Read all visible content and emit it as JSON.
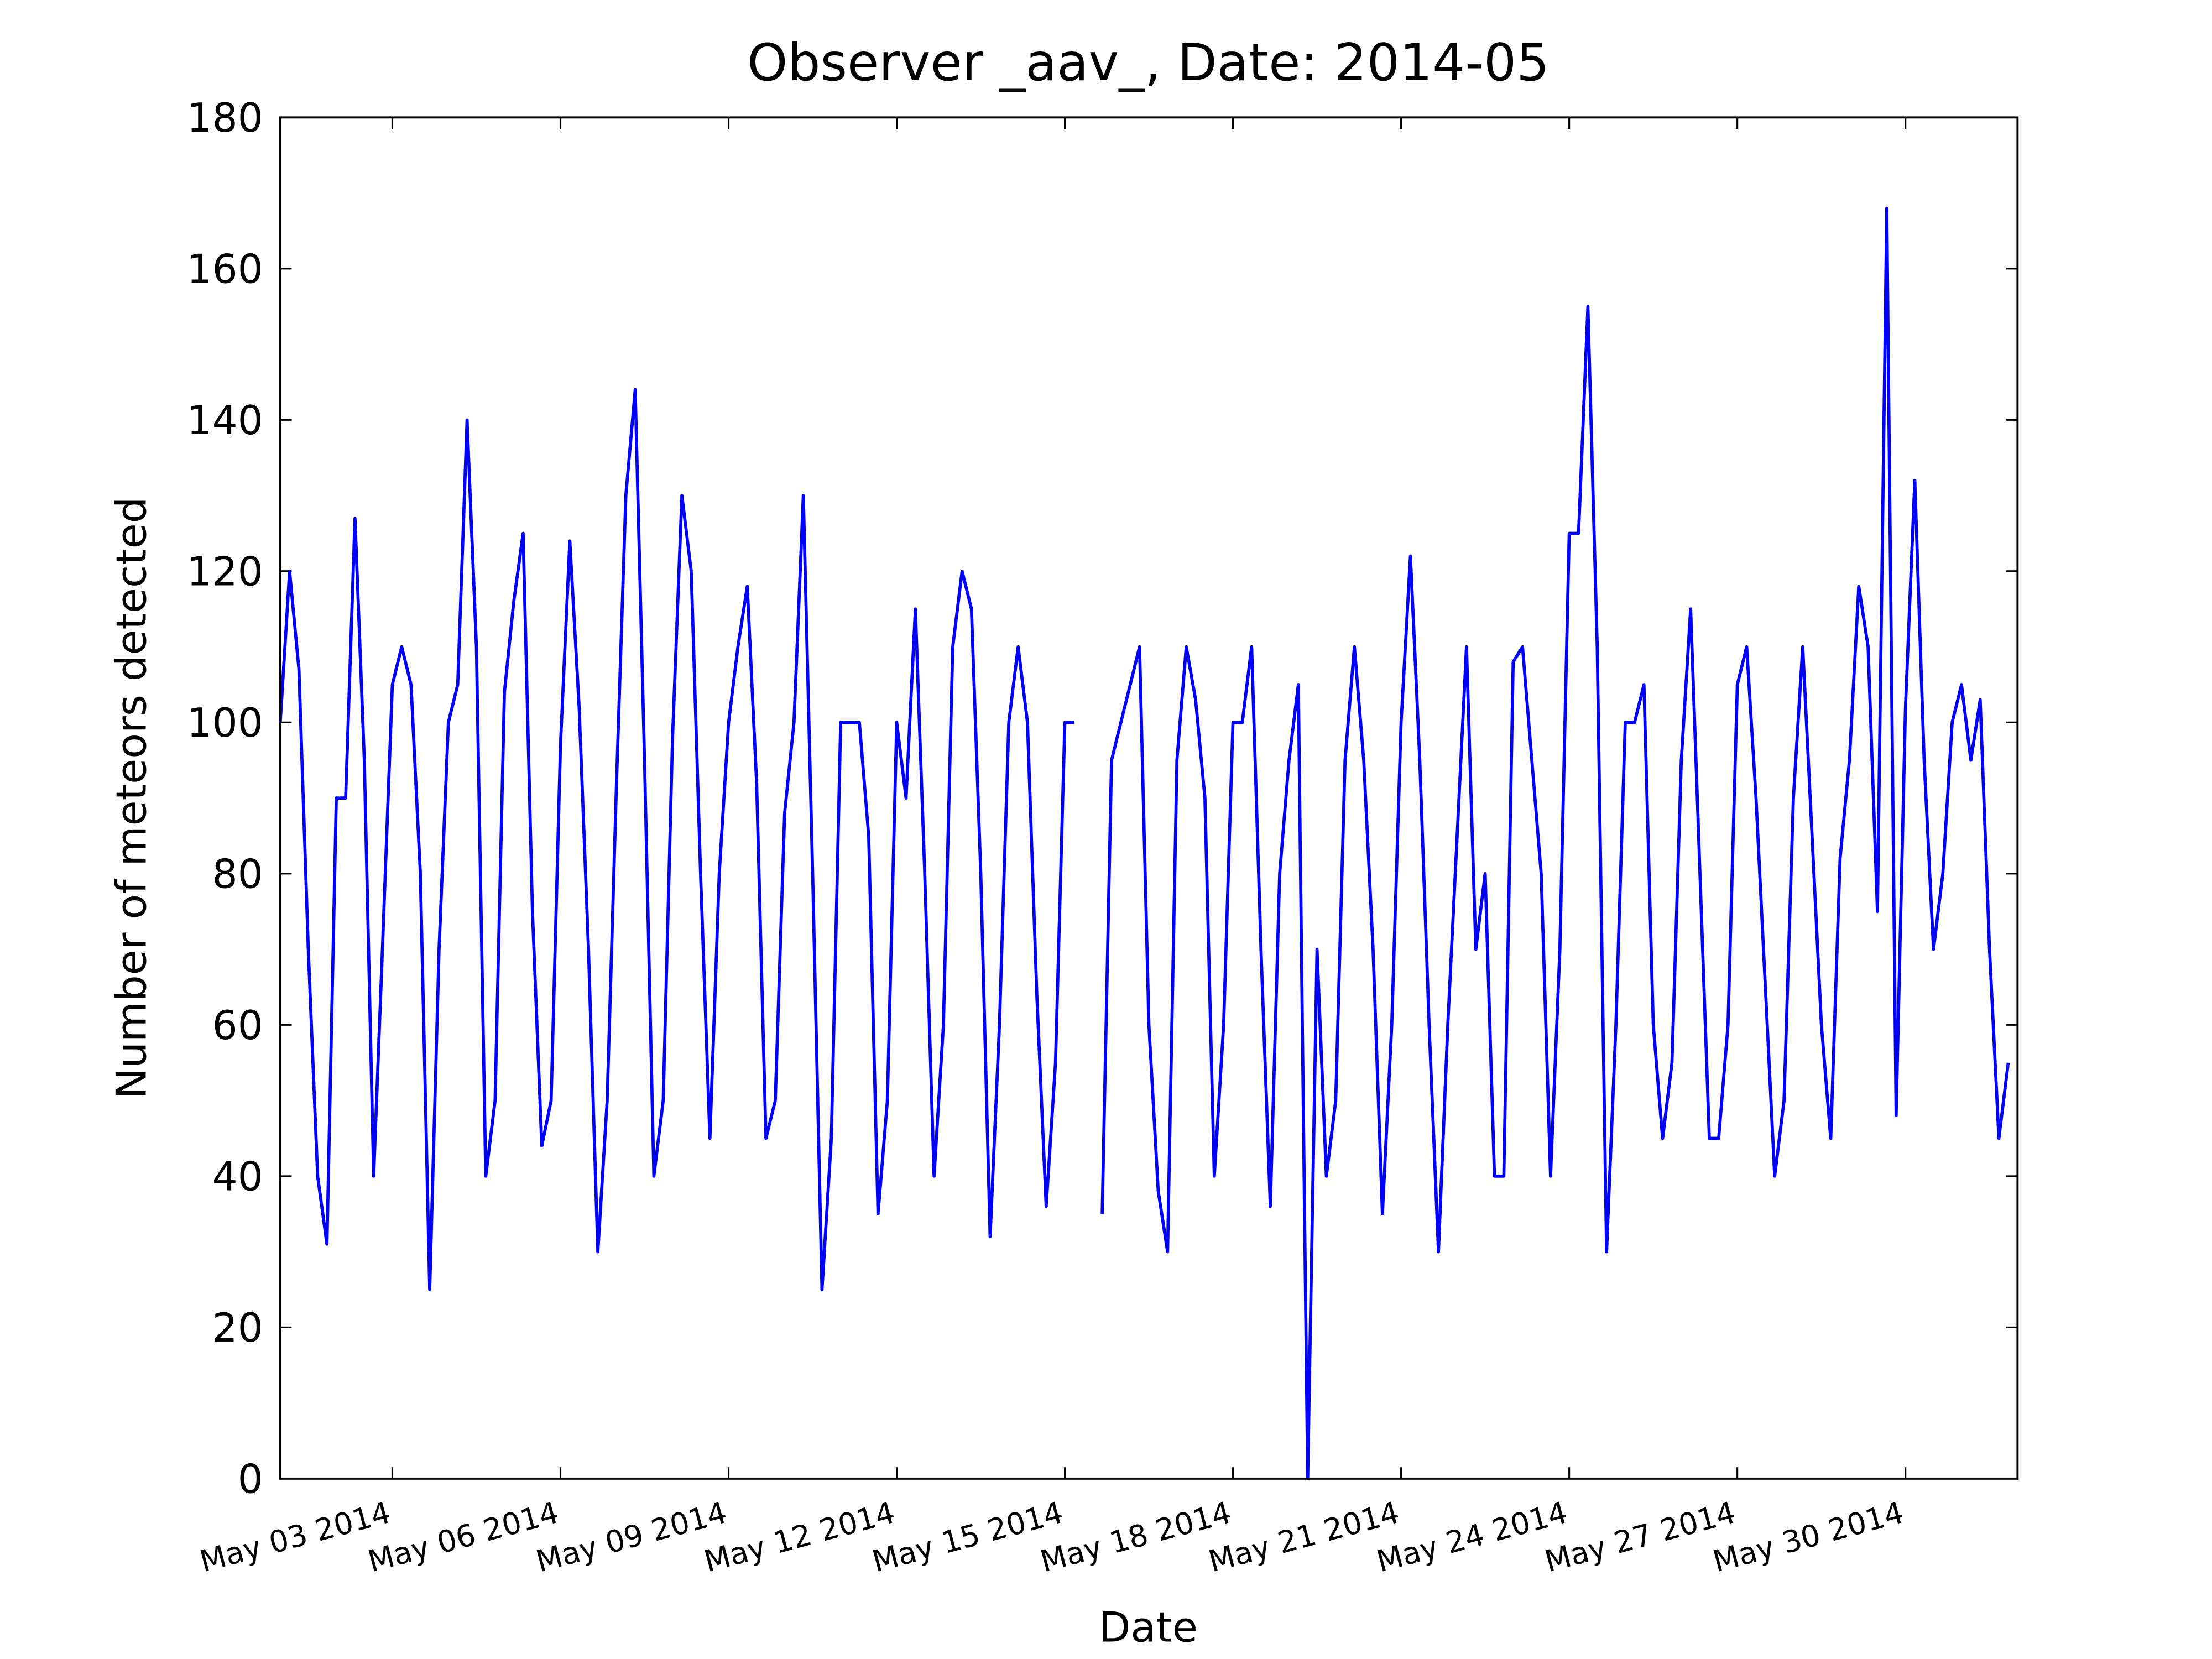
{
  "chart_data": {
    "type": "line",
    "title": "Observer _aav_, Date: 2014-05",
    "x_label": "Date",
    "y_label": "Number of meteors detected",
    "color": "#0000ff",
    "xlim": [
      "2014-05-01 00:00",
      "2014-06-01 00:00"
    ],
    "xticks": [
      {
        "value": "2014-05-03 00:00",
        "label": "May 03 2014"
      },
      {
        "value": "2014-05-06 00:00",
        "label": "May 06 2014"
      },
      {
        "value": "2014-05-09 00:00",
        "label": "May 09 2014"
      },
      {
        "value": "2014-05-12 00:00",
        "label": "May 12 2014"
      },
      {
        "value": "2014-05-15 00:00",
        "label": "May 15 2014"
      },
      {
        "value": "2014-05-18 00:00",
        "label": "May 18 2014"
      },
      {
        "value": "2014-05-21 00:00",
        "label": "May 21 2014"
      },
      {
        "value": "2014-05-24 00:00",
        "label": "May 24 2014"
      },
      {
        "value": "2014-05-27 00:00",
        "label": "May 27 2014"
      },
      {
        "value": "2014-05-30 00:00",
        "label": "May 30 2014"
      }
    ],
    "ylim": [
      0,
      180
    ],
    "yticks": [
      0,
      20,
      40,
      60,
      80,
      100,
      120,
      140,
      160,
      180
    ],
    "x": [
      "2014-05-01 00:00",
      "2014-05-01 04:00",
      "2014-05-01 08:00",
      "2014-05-01 12:00",
      "2014-05-01 16:00",
      "2014-05-01 20:00",
      "2014-05-02 00:00",
      "2014-05-02 04:00",
      "2014-05-02 08:00",
      "2014-05-02 12:00",
      "2014-05-02 16:00",
      "2014-05-02 20:00",
      "2014-05-03 00:00",
      "2014-05-03 04:00",
      "2014-05-03 08:00",
      "2014-05-03 12:00",
      "2014-05-03 16:00",
      "2014-05-03 20:00",
      "2014-05-04 00:00",
      "2014-05-04 04:00",
      "2014-05-04 08:00",
      "2014-05-04 12:00",
      "2014-05-04 16:00",
      "2014-05-04 20:00",
      "2014-05-05 00:00",
      "2014-05-05 04:00",
      "2014-05-05 08:00",
      "2014-05-05 12:00",
      "2014-05-05 16:00",
      "2014-05-05 20:00",
      "2014-05-06 00:00",
      "2014-05-06 04:00",
      "2014-05-06 08:00",
      "2014-05-06 12:00",
      "2014-05-06 16:00",
      "2014-05-06 20:00",
      "2014-05-07 00:00",
      "2014-05-07 04:00",
      "2014-05-07 08:00",
      "2014-05-07 12:00",
      "2014-05-07 16:00",
      "2014-05-07 20:00",
      "2014-05-08 00:00",
      "2014-05-08 04:00",
      "2014-05-08 08:00",
      "2014-05-08 12:00",
      "2014-05-08 16:00",
      "2014-05-08 20:00",
      "2014-05-09 00:00",
      "2014-05-09 04:00",
      "2014-05-09 08:00",
      "2014-05-09 12:00",
      "2014-05-09 16:00",
      "2014-05-09 20:00",
      "2014-05-10 00:00",
      "2014-05-10 04:00",
      "2014-05-10 08:00",
      "2014-05-10 12:00",
      "2014-05-10 16:00",
      "2014-05-10 20:00",
      "2014-05-11 00:00",
      "2014-05-11 04:00",
      "2014-05-11 08:00",
      "2014-05-11 12:00",
      "2014-05-11 16:00",
      "2014-05-11 20:00",
      "2014-05-12 00:00",
      "2014-05-12 04:00",
      "2014-05-12 08:00",
      "2014-05-12 12:00",
      "2014-05-12 16:00",
      "2014-05-12 20:00",
      "2014-05-13 00:00",
      "2014-05-13 04:00",
      "2014-05-13 08:00",
      "2014-05-13 12:00",
      "2014-05-13 16:00",
      "2014-05-13 20:00",
      "2014-05-14 00:00",
      "2014-05-14 04:00",
      "2014-05-14 08:00",
      "2014-05-14 12:00",
      "2014-05-14 16:00",
      "2014-05-14 20:00",
      "2014-05-15 00:00",
      "2014-05-15 04:00",
      "2014-05-15 08:00",
      "2014-05-15 12:00",
      "2014-05-15 16:00",
      "2014-05-15 20:00",
      "2014-05-16 00:00",
      "2014-05-16 04:00",
      "2014-05-16 08:00",
      "2014-05-16 12:00",
      "2014-05-16 16:00",
      "2014-05-16 20:00",
      "2014-05-17 00:00",
      "2014-05-17 04:00",
      "2014-05-17 08:00",
      "2014-05-17 12:00",
      "2014-05-17 16:00",
      "2014-05-17 20:00",
      "2014-05-18 00:00",
      "2014-05-18 04:00",
      "2014-05-18 08:00",
      "2014-05-18 12:00",
      "2014-05-18 16:00",
      "2014-05-18 20:00",
      "2014-05-19 00:00",
      "2014-05-19 04:00",
      "2014-05-19 08:00",
      "2014-05-19 12:00",
      "2014-05-19 16:00",
      "2014-05-19 20:00",
      "2014-05-20 00:00",
      "2014-05-20 04:00",
      "2014-05-20 08:00",
      "2014-05-20 12:00",
      "2014-05-20 16:00",
      "2014-05-20 20:00",
      "2014-05-21 00:00",
      "2014-05-21 04:00",
      "2014-05-21 08:00",
      "2014-05-21 12:00",
      "2014-05-21 16:00",
      "2014-05-21 20:00",
      "2014-05-22 00:00",
      "2014-05-22 04:00",
      "2014-05-22 08:00",
      "2014-05-22 12:00",
      "2014-05-22 16:00",
      "2014-05-22 20:00",
      "2014-05-23 00:00",
      "2014-05-23 04:00",
      "2014-05-23 08:00",
      "2014-05-23 12:00",
      "2014-05-23 16:00",
      "2014-05-23 20:00",
      "2014-05-24 00:00",
      "2014-05-24 04:00",
      "2014-05-24 08:00",
      "2014-05-24 12:00",
      "2014-05-24 16:00",
      "2014-05-24 20:00",
      "2014-05-25 00:00",
      "2014-05-25 04:00",
      "2014-05-25 08:00",
      "2014-05-25 12:00",
      "2014-05-25 16:00",
      "2014-05-25 20:00",
      "2014-05-26 00:00",
      "2014-05-26 04:00",
      "2014-05-26 08:00",
      "2014-05-26 12:00",
      "2014-05-26 16:00",
      "2014-05-26 20:00",
      "2014-05-27 00:00",
      "2014-05-27 04:00",
      "2014-05-27 08:00",
      "2014-05-27 12:00",
      "2014-05-27 16:00",
      "2014-05-27 20:00",
      "2014-05-28 00:00",
      "2014-05-28 04:00",
      "2014-05-28 08:00",
      "2014-05-28 12:00",
      "2014-05-28 16:00",
      "2014-05-28 20:00",
      "2014-05-29 00:00",
      "2014-05-29 04:00",
      "2014-05-29 08:00",
      "2014-05-29 12:00",
      "2014-05-29 16:00",
      "2014-05-29 20:00",
      "2014-05-30 00:00",
      "2014-05-30 04:00",
      "2014-05-30 08:00",
      "2014-05-30 12:00",
      "2014-05-30 16:00",
      "2014-05-30 20:00",
      "2014-05-31 00:00",
      "2014-05-31 04:00",
      "2014-05-31 08:00",
      "2014-05-31 12:00",
      "2014-05-31 16:00",
      "2014-05-31 20:00"
    ],
    "values": [
      100,
      120,
      107,
      70,
      40,
      31,
      90,
      90,
      127,
      95,
      40,
      72,
      105,
      110,
      105,
      80,
      25,
      70,
      100,
      105,
      140,
      110,
      40,
      50,
      104,
      116,
      125,
      75,
      44,
      50,
      97,
      124,
      102,
      70,
      30,
      50,
      92,
      130,
      144,
      95,
      40,
      50,
      98,
      130,
      120,
      80,
      45,
      80,
      100,
      110,
      118,
      92,
      45,
      50,
      88,
      100,
      130,
      80,
      25,
      45,
      100,
      100,
      100,
      85,
      35,
      50,
      100,
      90,
      115,
      80,
      40,
      60,
      110,
      120,
      115,
      80,
      32,
      60,
      100,
      110,
      100,
      64,
      36,
      55,
      100,
      100,
      null,
      null,
      35,
      95,
      100,
      105,
      110,
      60,
      38,
      30,
      95,
      110,
      103,
      90,
      40,
      60,
      100,
      100,
      110,
      70,
      36,
      80,
      95,
      105,
      0,
      70,
      40,
      50,
      95,
      110,
      95,
      70,
      35,
      60,
      100,
      122,
      95,
      60,
      30,
      60,
      85,
      110,
      70,
      80,
      40,
      40,
      108,
      110,
      95,
      80,
      40,
      70,
      125,
      125,
      155,
      110,
      30,
      60,
      100,
      100,
      105,
      60,
      45,
      55,
      95,
      115,
      80,
      45,
      45,
      60,
      105,
      110,
      90,
      65,
      40,
      50,
      90,
      110,
      85,
      60,
      45,
      82,
      95,
      118,
      110,
      75,
      168,
      48,
      102,
      132,
      95,
      70,
      80,
      100,
      105,
      95,
      103,
      70,
      45,
      55
    ]
  }
}
